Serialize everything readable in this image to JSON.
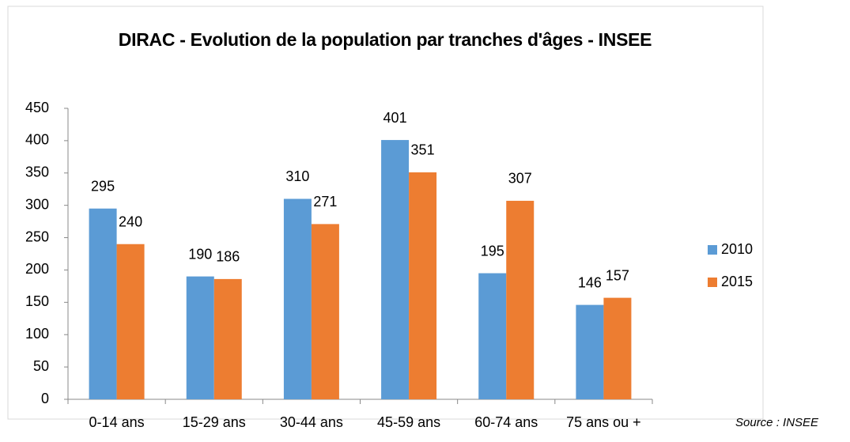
{
  "chart_data": {
    "type": "bar",
    "title": "DIRAC - Evolution de la population par tranches d'âges - INSEE",
    "categories": [
      "0-14 ans",
      "15-29 ans",
      "30-44 ans",
      "45-59 ans",
      "60-74 ans",
      "75 ans ou +"
    ],
    "series": [
      {
        "name": "2010",
        "color": "#5b9bd5",
        "values": [
          295,
          190,
          310,
          401,
          195,
          146
        ]
      },
      {
        "name": "2015",
        "color": "#ed7d31",
        "values": [
          240,
          186,
          271,
          351,
          307,
          157
        ]
      }
    ],
    "ylim": [
      0,
      450
    ],
    "yticks": [
      0,
      50,
      100,
      150,
      200,
      250,
      300,
      350,
      400,
      450
    ],
    "grid": false,
    "legend": "right",
    "source": "Source : INSEE"
  }
}
